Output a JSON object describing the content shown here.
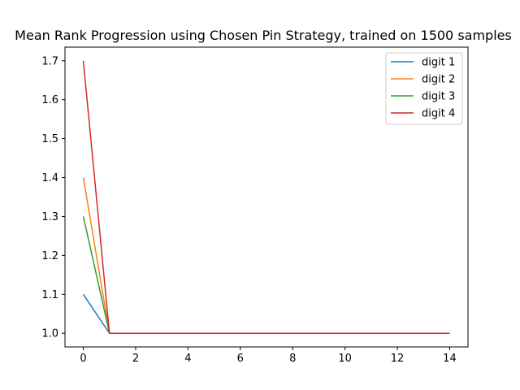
{
  "chart_data": {
    "type": "line",
    "title": "Mean Rank Progression using Chosen Pin Strategy, trained on 1500 samples",
    "xlabel": "",
    "ylabel": "",
    "x": [
      0,
      1,
      2,
      3,
      4,
      5,
      6,
      7,
      8,
      9,
      10,
      11,
      12,
      13,
      14
    ],
    "xlim": [
      -0.7,
      14.7
    ],
    "ylim": [
      0.965,
      1.735
    ],
    "xticks": [
      0,
      2,
      4,
      6,
      8,
      10,
      12,
      14
    ],
    "yticks": [
      1.0,
      1.1,
      1.2,
      1.3,
      1.4,
      1.5,
      1.6,
      1.7
    ],
    "grid": false,
    "legend_position": "top-right",
    "series": [
      {
        "name": "digit 1",
        "color": "#1f77b4",
        "values": [
          1.1,
          1.0,
          1.0,
          1.0,
          1.0,
          1.0,
          1.0,
          1.0,
          1.0,
          1.0,
          1.0,
          1.0,
          1.0,
          1.0,
          1.0
        ]
      },
      {
        "name": "digit 2",
        "color": "#ff7f0e",
        "values": [
          1.4,
          1.0,
          1.0,
          1.0,
          1.0,
          1.0,
          1.0,
          1.0,
          1.0,
          1.0,
          1.0,
          1.0,
          1.0,
          1.0,
          1.0
        ]
      },
      {
        "name": "digit 3",
        "color": "#2ca02c",
        "values": [
          1.3,
          1.0,
          1.0,
          1.0,
          1.0,
          1.0,
          1.0,
          1.0,
          1.0,
          1.0,
          1.0,
          1.0,
          1.0,
          1.0,
          1.0
        ]
      },
      {
        "name": "digit 4",
        "color": "#d62728",
        "values": [
          1.7,
          1.0,
          1.0,
          1.0,
          1.0,
          1.0,
          1.0,
          1.0,
          1.0,
          1.0,
          1.0,
          1.0,
          1.0,
          1.0,
          1.0
        ]
      }
    ]
  }
}
